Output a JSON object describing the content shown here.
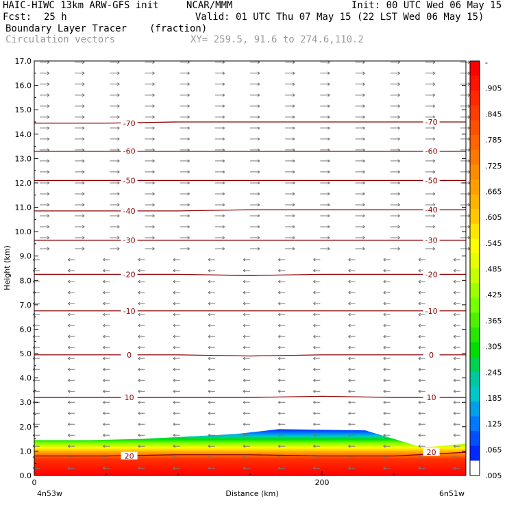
{
  "header": {
    "model": "HAIC-HIWC 13km ARW-GFS init",
    "org": "NCAR/MMM",
    "init": "Init: 00 UTC Wed 06 May 15",
    "fcst_label": "Fcst:",
    "fcst_value": "25 h",
    "valid": "Valid: 01 UTC Thu 07 May 15 (22 LST Wed 06 May 15)",
    "field1": "Boundary Layer Tracer",
    "field1_units": "(fraction)",
    "field2": "Circulation vectors",
    "xy": "XY= 259.5, 91.6 to 274.6,110.2"
  },
  "chart_data": {
    "type": "heatmap",
    "xlabel": "Distance (km)",
    "ylabel": "Height (km)",
    "xlim": [
      0,
      300
    ],
    "ylim": [
      0,
      17
    ],
    "x_ticks": [
      "0",
      "200"
    ],
    "x_end_labels": [
      "4n53w",
      "6n51w"
    ],
    "y_ticks": [
      "0.0",
      "1.0",
      "2.0",
      "3.0",
      "4.0",
      "5.0",
      "6.0",
      "7.0",
      "8.0",
      "9.0",
      "10.0",
      "11.0",
      "12.0",
      "13.0",
      "14.0",
      "15.0",
      "16.0",
      "17.0"
    ],
    "colorbar": {
      "labels": [
        "-",
        ".905",
        ".845",
        ".785",
        ".725",
        ".665",
        ".605",
        ".545",
        ".485",
        ".425",
        ".365",
        ".305",
        ".245",
        ".185",
        ".125",
        ".065",
        ".005"
      ],
      "colors": [
        "#ff0000",
        "#ff1400",
        "#ff2800",
        "#ff3c00",
        "#ff5000",
        "#ff6400",
        "#ff7800",
        "#ff8c00",
        "#ffa000",
        "#ffb400",
        "#ffc800",
        "#ffe600",
        "#ffff00",
        "#e6ff00",
        "#c8ff00",
        "#a0ff00",
        "#78ff00",
        "#50f000",
        "#28e600",
        "#00dc00",
        "#00d250",
        "#00c8a0",
        "#00c8c8",
        "#00a0e6",
        "#0078ff",
        "#0050ff",
        "#0028ff",
        "#ffffff"
      ]
    },
    "temperature_contours": [
      {
        "label": "20",
        "heights_km": [
          0.8,
          0.8,
          0.85,
          0.85,
          0.8,
          0.8,
          0.95
        ]
      },
      {
        "label": "10",
        "heights_km": [
          3.2,
          3.2,
          3.2,
          3.2,
          3.25,
          3.2,
          3.2
        ]
      },
      {
        "label": "0",
        "heights_km": [
          4.95,
          4.95,
          4.95,
          4.9,
          4.95,
          4.95,
          4.95
        ]
      },
      {
        "label": "-10",
        "heights_km": [
          6.75,
          6.75,
          6.75,
          6.75,
          6.75,
          6.75,
          6.75
        ]
      },
      {
        "label": "-20",
        "heights_km": [
          8.25,
          8.25,
          8.25,
          8.2,
          8.25,
          8.25,
          8.25
        ]
      },
      {
        "label": "-30",
        "heights_km": [
          9.65,
          9.65,
          9.65,
          9.65,
          9.65,
          9.65,
          9.65
        ]
      },
      {
        "label": "-40",
        "heights_km": [
          10.85,
          10.85,
          10.85,
          10.9,
          10.9,
          10.9,
          10.9
        ]
      },
      {
        "label": "-50",
        "heights_km": [
          12.1,
          12.1,
          12.1,
          12.1,
          12.1,
          12.1,
          12.1
        ]
      },
      {
        "label": "-60",
        "heights_km": [
          13.3,
          13.3,
          13.3,
          13.3,
          13.3,
          13.3,
          13.3
        ]
      },
      {
        "label": "-70",
        "heights_km": [
          14.45,
          14.45,
          14.5,
          14.5,
          14.5,
          14.5,
          14.5
        ]
      }
    ],
    "tracer_top_km": [
      1.45,
      1.45,
      1.5,
      1.7,
      1.9,
      1.85,
      1.15,
      1.3
    ],
    "tracer_x_km": [
      0,
      40,
      75,
      140,
      170,
      230,
      270,
      300
    ]
  }
}
